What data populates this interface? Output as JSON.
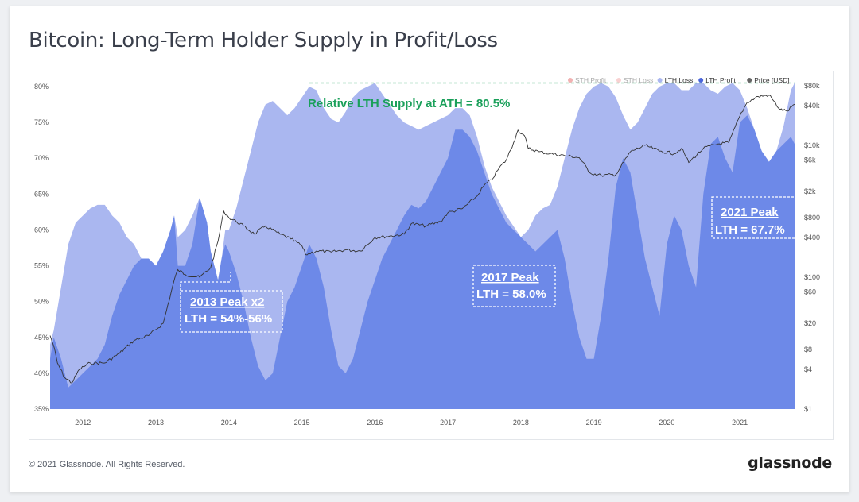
{
  "title": "Bitcoin: Long-Term Holder Supply in Profit/Loss",
  "footer": {
    "copyright": "© 2021 Glassnode. All Rights Reserved.",
    "brand": "glassnode"
  },
  "watermark": "glassnode",
  "colors": {
    "lth_loss": "#aab7f0",
    "lth_profit": "#6d89e8",
    "price": "#333333",
    "ath_line": "#1aa05a"
  },
  "chart_data": {
    "type": "area",
    "title": "Bitcoin: Long-Term Holder Supply in Profit/Loss",
    "legend": [
      {
        "name": "STH Profit",
        "color": "#e05454",
        "faded": true
      },
      {
        "name": "STH Loss",
        "color": "#f09a9a",
        "faded": true
      },
      {
        "name": "LTH Loss",
        "color": "#aab7f0",
        "faded": false
      },
      {
        "name": "LTH Profit",
        "color": "#4c66db",
        "faded": false
      },
      {
        "name": "Price [USD]",
        "color": "#666666",
        "faded": false
      }
    ],
    "legend_position": "top-right",
    "x_range": [
      2011.55,
      2021.75
    ],
    "x_ticks": [
      "2012",
      "2013",
      "2014",
      "2015",
      "2016",
      "2017",
      "2018",
      "2019",
      "2020",
      "2021"
    ],
    "y_left_ticks": [
      "35%",
      "40%",
      "45%",
      "50%",
      "55%",
      "60%",
      "65%",
      "70%",
      "75%",
      "80%"
    ],
    "y_left_range": [
      35,
      81
    ],
    "y_right_ticks": [
      {
        "label": "$1",
        "value": 1
      },
      {
        "label": "$4",
        "value": 4
      },
      {
        "label": "$8",
        "value": 8
      },
      {
        "label": "$20",
        "value": 20
      },
      {
        "label": "$60",
        "value": 60
      },
      {
        "label": "$100",
        "value": 100
      },
      {
        "label": "$400",
        "value": 400
      },
      {
        "label": "$800",
        "value": 800
      },
      {
        "label": "$2k",
        "value": 2000
      },
      {
        "label": "$6k",
        "value": 6000
      },
      {
        "label": "$10k",
        "value": 10000
      },
      {
        "label": "$40k",
        "value": 40000
      },
      {
        "label": "$80k",
        "value": 80000
      }
    ],
    "y_right_scale": "log",
    "y_right_range": [
      1,
      100000
    ],
    "grid": false,
    "lth_total_pct": {
      "x": [
        2011.55,
        2011.6,
        2011.7,
        2011.8,
        2011.9,
        2012.0,
        2012.1,
        2012.2,
        2012.3,
        2012.4,
        2012.5,
        2012.6,
        2012.7,
        2012.8,
        2012.9,
        2013.0,
        2013.1,
        2013.2,
        2013.25,
        2013.3,
        2013.4,
        2013.5,
        2013.6,
        2013.7,
        2013.75,
        2013.8,
        2013.85,
        2013.9,
        2013.95,
        2014.0,
        2014.1,
        2014.2,
        2014.3,
        2014.4,
        2014.5,
        2014.6,
        2014.7,
        2014.8,
        2014.9,
        2015.0,
        2015.1,
        2015.2,
        2015.3,
        2015.4,
        2015.5,
        2015.6,
        2015.7,
        2015.8,
        2015.9,
        2016.0,
        2016.1,
        2016.2,
        2016.3,
        2016.4,
        2016.5,
        2016.6,
        2016.7,
        2016.8,
        2016.9,
        2017.0,
        2017.1,
        2017.2,
        2017.3,
        2017.4,
        2017.5,
        2017.6,
        2017.7,
        2017.8,
        2017.9,
        2018.0,
        2018.1,
        2018.2,
        2018.3,
        2018.4,
        2018.5,
        2018.6,
        2018.7,
        2018.8,
        2018.9,
        2019.0,
        2019.1,
        2019.2,
        2019.3,
        2019.4,
        2019.5,
        2019.6,
        2019.7,
        2019.8,
        2019.9,
        2020.0,
        2020.1,
        2020.2,
        2020.3,
        2020.4,
        2020.5,
        2020.6,
        2020.7,
        2020.8,
        2020.9,
        2021.0,
        2021.1,
        2021.2,
        2021.3,
        2021.4,
        2021.5,
        2021.6,
        2021.7,
        2021.75
      ],
      "y": [
        44,
        46,
        52,
        58,
        61,
        62,
        63,
        63.5,
        63.5,
        62,
        61,
        59,
        58,
        56,
        56,
        55,
        57,
        60,
        62,
        59,
        60,
        62,
        64.5,
        61,
        57,
        55,
        53,
        56,
        60,
        60,
        63,
        67,
        71,
        75,
        77.5,
        78,
        77,
        76,
        77,
        78.5,
        80,
        79.5,
        77,
        75.5,
        75,
        76.5,
        78.5,
        79.5,
        80,
        80.5,
        79,
        77.5,
        76,
        75,
        74.5,
        74,
        74.5,
        75,
        75.5,
        76,
        77,
        77,
        76,
        73,
        69,
        66,
        64,
        62,
        60.5,
        59,
        60,
        62,
        63,
        63.5,
        66,
        70,
        74,
        77,
        79,
        80,
        80.5,
        80,
        78.5,
        76,
        74,
        75,
        77,
        79,
        80,
        80.5,
        80.5,
        79.5,
        79.5,
        80.5,
        80.5,
        79.5,
        79,
        80,
        80.5,
        79.5,
        77,
        74,
        71,
        69.5,
        71,
        74.5,
        79.5,
        80.5
      ]
    },
    "lth_profit_pct": {
      "x": [
        2011.55,
        2011.6,
        2011.7,
        2011.8,
        2011.9,
        2012.0,
        2012.1,
        2012.2,
        2012.3,
        2012.4,
        2012.5,
        2012.6,
        2012.7,
        2012.8,
        2012.9,
        2013.0,
        2013.1,
        2013.2,
        2013.25,
        2013.3,
        2013.4,
        2013.5,
        2013.6,
        2013.7,
        2013.75,
        2013.8,
        2013.85,
        2013.9,
        2013.95,
        2014.0,
        2014.1,
        2014.2,
        2014.3,
        2014.4,
        2014.5,
        2014.6,
        2014.7,
        2014.8,
        2014.9,
        2015.0,
        2015.1,
        2015.2,
        2015.3,
        2015.4,
        2015.5,
        2015.6,
        2015.7,
        2015.8,
        2015.9,
        2016.0,
        2016.1,
        2016.2,
        2016.3,
        2016.4,
        2016.5,
        2016.6,
        2016.7,
        2016.8,
        2016.9,
        2017.0,
        2017.1,
        2017.2,
        2017.3,
        2017.4,
        2017.5,
        2017.6,
        2017.7,
        2017.8,
        2017.9,
        2018.0,
        2018.1,
        2018.2,
        2018.3,
        2018.4,
        2018.5,
        2018.6,
        2018.7,
        2018.8,
        2018.9,
        2019.0,
        2019.1,
        2019.2,
        2019.3,
        2019.4,
        2019.5,
        2019.6,
        2019.7,
        2019.8,
        2019.9,
        2020.0,
        2020.1,
        2020.2,
        2020.3,
        2020.4,
        2020.5,
        2020.6,
        2020.7,
        2020.8,
        2020.9,
        2021.0,
        2021.1,
        2021.2,
        2021.3,
        2021.4,
        2021.5,
        2021.6,
        2021.7,
        2021.75
      ],
      "y": [
        42,
        45,
        42,
        38,
        39,
        40,
        41,
        42,
        44,
        48,
        51,
        53,
        55,
        56,
        56,
        55,
        57,
        60,
        62,
        55,
        55,
        58,
        64.5,
        61,
        57,
        55,
        53,
        56,
        58,
        57,
        54,
        50,
        45,
        41,
        39,
        40,
        45,
        50,
        52,
        55,
        58,
        56,
        52,
        46,
        41,
        40,
        42,
        46,
        50,
        53,
        56,
        58,
        60,
        62,
        63.5,
        63,
        64,
        66,
        68,
        70,
        74,
        74,
        73,
        71,
        68,
        65,
        63,
        61,
        60,
        59,
        58,
        57,
        58,
        59,
        60,
        56,
        50,
        45,
        42,
        42,
        48,
        56,
        66,
        70,
        68,
        62,
        56,
        52,
        48,
        58,
        62,
        60,
        55,
        52,
        65,
        72,
        73,
        70,
        68,
        75,
        76,
        74,
        71,
        69.5,
        71,
        72,
        73,
        72
      ]
    },
    "price_usd": {
      "x": [
        2011.55,
        2011.6,
        2011.65,
        2011.75,
        2011.85,
        2011.95,
        2012.1,
        2012.3,
        2012.5,
        2012.7,
        2012.9,
        2013.1,
        2013.25,
        2013.3,
        2013.4,
        2013.6,
        2013.75,
        2013.85,
        2013.93,
        2014.0,
        2014.1,
        2014.2,
        2014.35,
        2014.5,
        2014.7,
        2014.85,
        2015.0,
        2015.05,
        2015.2,
        2015.4,
        2015.6,
        2015.8,
        2016.0,
        2016.2,
        2016.4,
        2016.5,
        2016.7,
        2016.9,
        2017.0,
        2017.2,
        2017.4,
        2017.5,
        2017.6,
        2017.7,
        2017.8,
        2017.9,
        2017.96,
        2018.05,
        2018.1,
        2018.25,
        2018.4,
        2018.6,
        2018.8,
        2018.95,
        2019.1,
        2019.3,
        2019.5,
        2019.7,
        2019.9,
        2020.1,
        2020.2,
        2020.3,
        2020.5,
        2020.7,
        2020.85,
        2021.0,
        2021.1,
        2021.25,
        2021.4,
        2021.55,
        2021.65,
        2021.75
      ],
      "y": [
        13,
        9,
        5,
        3,
        2.5,
        4,
        5,
        5,
        7,
        11,
        13,
        20,
        90,
        130,
        110,
        100,
        140,
        350,
        1000,
        800,
        700,
        600,
        450,
        600,
        450,
        380,
        300,
        220,
        250,
        240,
        260,
        250,
        400,
        420,
        450,
        650,
        600,
        700,
        950,
        1100,
        1700,
        2500,
        3000,
        4500,
        6000,
        11000,
        17000,
        14000,
        9000,
        8000,
        7500,
        7000,
        6500,
        3800,
        3500,
        3600,
        8000,
        10000,
        8200,
        7500,
        9000,
        5500,
        9000,
        10500,
        11000,
        28000,
        45000,
        55000,
        58000,
        35000,
        33000,
        42000
      ]
    },
    "annotations": [
      {
        "text": "Relative LTH Supply at ATH = 80.5%",
        "value": 80.5
      },
      {
        "text": "2013 Peak x2",
        "subtext": "LTH = 54%-56%"
      },
      {
        "text": "2017 Peak",
        "subtext": "LTH = 58.0%"
      },
      {
        "text": "2021 Peak",
        "subtext": "LTH = 67.7%"
      }
    ]
  }
}
